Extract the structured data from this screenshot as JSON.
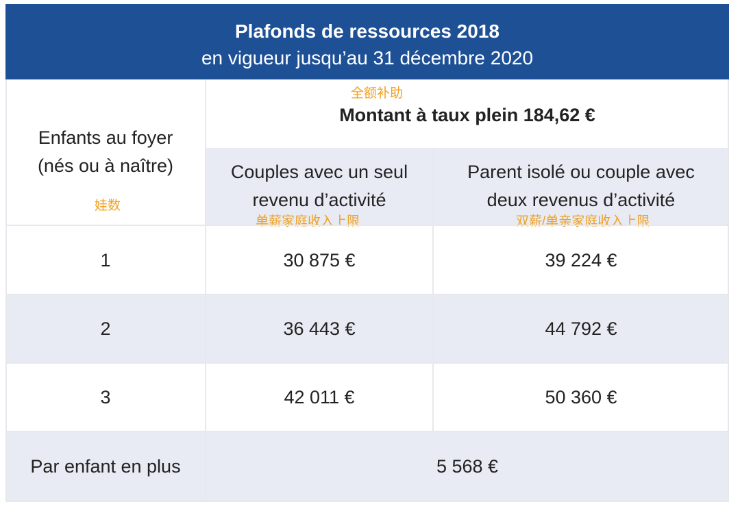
{
  "header": {
    "title": "Plafonds de ressources 2018",
    "subtitle": "en vigueur jusqu’au 31 décembre 2020"
  },
  "table": {
    "row_header_label_line1": "Enfants au foyer",
    "row_header_label_line2": "(nés ou à naître)",
    "row_header_annotation": "娃数",
    "amount_annotation": "全额补助",
    "amount_label": "Montant à taux plein 184,62 €",
    "col1_label_line1": "Couples avec un seul",
    "col1_label_line2": "revenu d’activité",
    "col1_annotation": "单薪家庭收入上限",
    "col2_label_line1": "Parent isolé ou couple avec",
    "col2_label_line2": "deux revenus d’activité",
    "col2_annotation": "双薪/单亲家庭收入上限",
    "rows": [
      {
        "children": "1",
        "single_income": "30 875 €",
        "double_income": "39 224 €"
      },
      {
        "children": "2",
        "single_income": "36 443 €",
        "double_income": "44 792 €"
      },
      {
        "children": "3",
        "single_income": "42 011 €",
        "double_income": "50 360 €"
      }
    ],
    "extra_row": {
      "label": "Par enfant en plus",
      "value": "5 568 €"
    }
  },
  "colors": {
    "header_bg": "#1e5096",
    "shade_bg": "#e8ebf3",
    "annotation": "#f0a020"
  }
}
